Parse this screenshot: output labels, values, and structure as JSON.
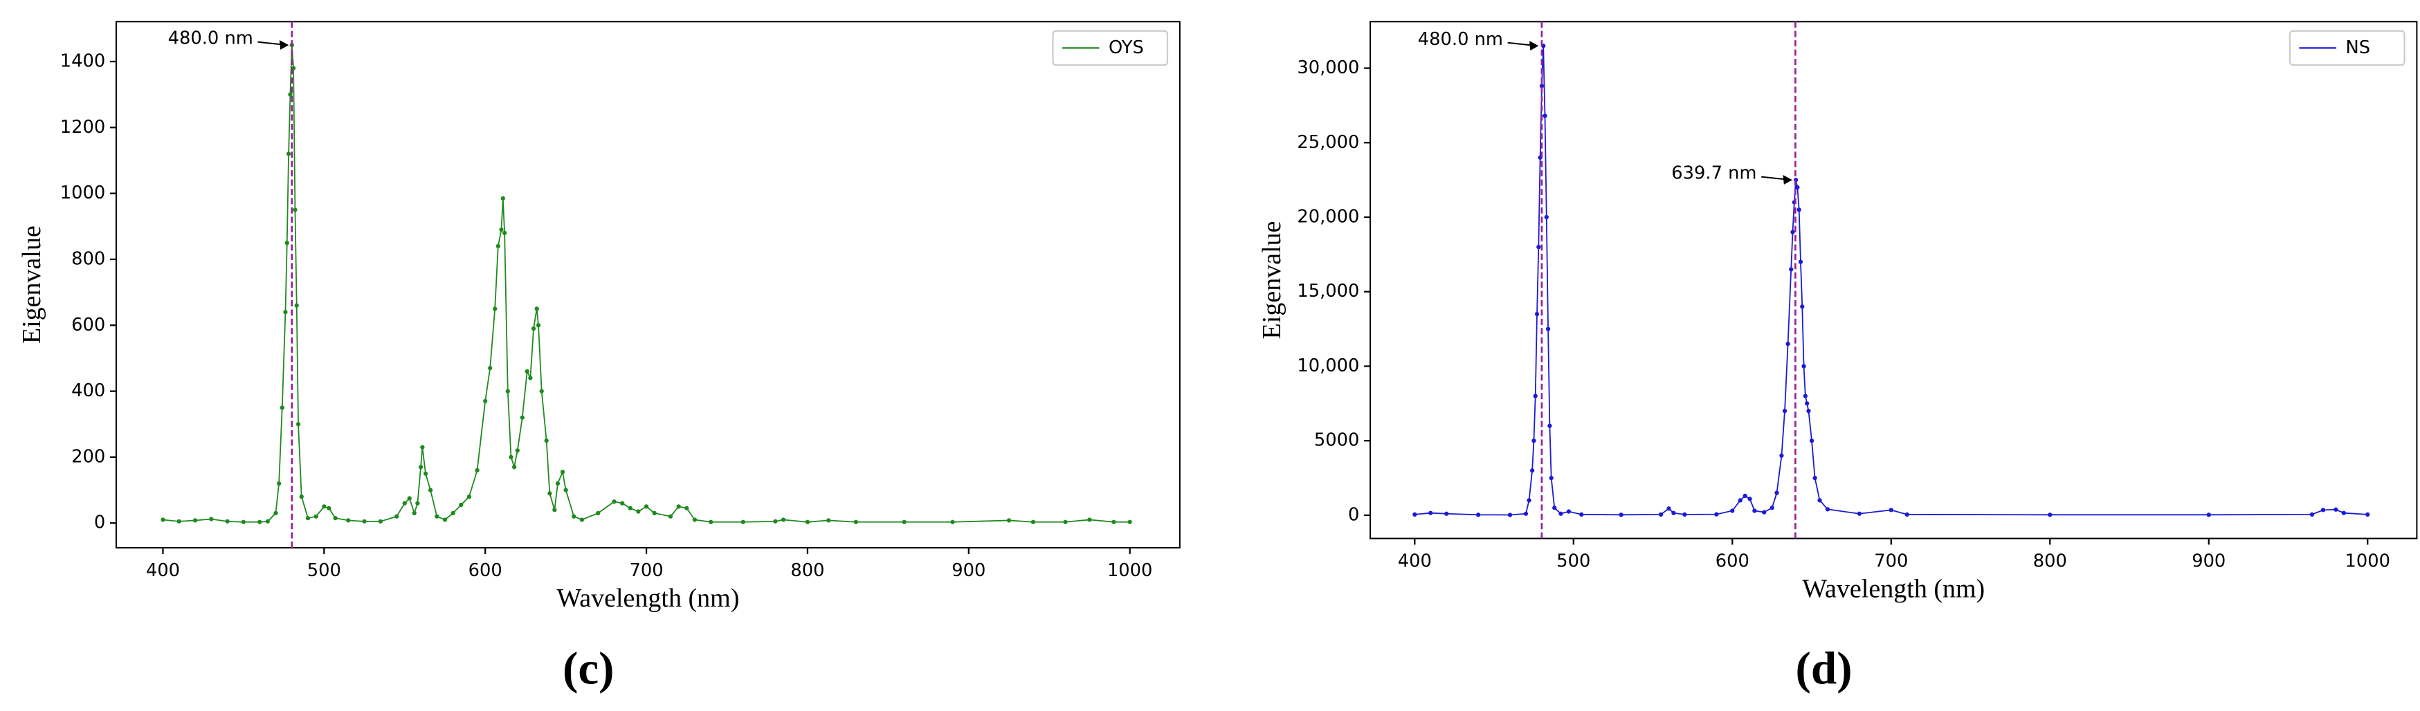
{
  "chart_data": [
    {
      "type": "line",
      "panel": "(c)",
      "xlabel": "Wavelength (nm)",
      "ylabel": "Eigenvalue",
      "xlim": [
        371,
        1031
      ],
      "ylim": [
        -75,
        1521
      ],
      "xticks": [
        400,
        500,
        600,
        700,
        800,
        900,
        1000
      ],
      "yticks": [
        0,
        200,
        400,
        600,
        800,
        1000,
        1200,
        1400
      ],
      "legend": "upper right",
      "vline_color": "#9a1f9a",
      "vlines": [
        480
      ],
      "annotations": [
        {
          "text": "480.0 nm",
          "x": 480,
          "y": 1450
        }
      ],
      "series": [
        {
          "name": "OYS",
          "color": "#1e8a1e",
          "x": [
            400,
            410,
            420,
            430,
            440,
            450,
            460,
            465,
            470,
            472,
            474,
            476,
            477,
            478,
            479,
            480,
            481,
            482,
            483,
            484,
            486,
            490,
            495,
            500,
            503,
            507,
            515,
            525,
            535,
            545,
            550,
            553,
            556,
            558,
            560,
            561,
            563,
            566,
            570,
            575,
            580,
            585,
            590,
            595,
            600,
            603,
            606,
            608,
            610,
            611,
            612,
            614,
            616,
            618,
            620,
            623,
            626,
            628,
            630,
            632,
            633,
            635,
            638,
            640,
            643,
            645,
            648,
            650,
            655,
            660,
            670,
            680,
            685,
            690,
            695,
            700,
            705,
            715,
            720,
            725,
            730,
            740,
            760,
            780,
            785,
            800,
            813,
            830,
            860,
            890,
            925,
            940,
            960,
            975,
            990,
            1000
          ],
          "values": [
            10,
            5,
            8,
            12,
            5,
            3,
            3,
            5,
            30,
            120,
            350,
            640,
            850,
            1120,
            1300,
            1450,
            1380,
            950,
            660,
            300,
            80,
            15,
            20,
            50,
            45,
            15,
            8,
            5,
            5,
            20,
            60,
            75,
            30,
            60,
            170,
            230,
            150,
            100,
            20,
            10,
            30,
            55,
            80,
            160,
            370,
            470,
            650,
            840,
            890,
            985,
            880,
            400,
            200,
            170,
            220,
            320,
            460,
            440,
            590,
            650,
            600,
            400,
            250,
            90,
            40,
            120,
            155,
            100,
            20,
            10,
            30,
            65,
            60,
            45,
            35,
            50,
            30,
            20,
            50,
            45,
            10,
            3,
            3,
            5,
            10,
            3,
            8,
            3,
            3,
            3,
            8,
            3,
            3,
            10,
            3,
            3
          ]
        }
      ]
    },
    {
      "type": "line",
      "panel": "(d)",
      "xlabel": "Wavelength (nm)",
      "ylabel": "Eigenvalue",
      "xlim": [
        372,
        1031
      ],
      "ylim": [
        -1560,
        33120
      ],
      "xticks": [
        400,
        500,
        600,
        700,
        800,
        900,
        1000
      ],
      "yticks": [
        0,
        5000,
        {
          "value": 10000,
          "label": "10,000"
        },
        {
          "value": 15000,
          "label": "15,000"
        },
        {
          "value": 20000,
          "label": "20,000"
        },
        {
          "value": 25000,
          "label": "25,000"
        },
        {
          "value": 30000,
          "label": "30,000"
        }
      ],
      "legend": "upper right",
      "vline_color": "#9a1f9a",
      "vlines": [
        480,
        639.7
      ],
      "annotations": [
        {
          "text": "480.0 nm",
          "x": 480,
          "y": 31500
        },
        {
          "text": "639.7 nm",
          "x": 639.7,
          "y": 22500
        }
      ],
      "series": [
        {
          "name": "NS",
          "color": "#1a1ad6",
          "x": [
            400,
            410,
            420,
            440,
            460,
            470,
            472,
            474,
            475,
            476,
            477,
            478,
            479,
            480,
            481,
            482,
            483,
            484,
            485,
            486,
            488,
            492,
            497,
            505,
            530,
            555,
            560,
            563,
            570,
            590,
            600,
            605,
            608,
            611,
            614,
            620,
            625,
            628,
            631,
            633,
            635,
            637,
            638,
            639,
            640,
            641,
            642,
            643,
            644,
            645,
            646,
            647,
            648,
            650,
            652,
            655,
            660,
            680,
            700,
            710,
            800,
            900,
            965,
            972,
            980,
            985,
            1000
          ],
          "values": [
            50,
            150,
            100,
            30,
            20,
            100,
            1000,
            3000,
            5000,
            8000,
            13500,
            18000,
            24000,
            28800,
            31500,
            26800,
            20000,
            12500,
            6000,
            2500,
            500,
            100,
            250,
            50,
            30,
            50,
            450,
            150,
            50,
            60,
            300,
            1000,
            1300,
            1100,
            300,
            200,
            500,
            1500,
            4000,
            7000,
            11500,
            16500,
            19000,
            21000,
            22500,
            22000,
            20500,
            17000,
            14000,
            10000,
            8000,
            7500,
            7000,
            5000,
            2500,
            1000,
            400,
            100,
            350,
            50,
            30,
            30,
            50,
            350,
            380,
            150,
            50
          ]
        }
      ]
    }
  ]
}
